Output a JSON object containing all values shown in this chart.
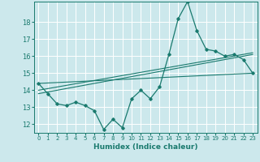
{
  "title": "",
  "xlabel": "Humidex (Indice chaleur)",
  "bg_color": "#cce8ec",
  "grid_color": "#ffffff",
  "line_color": "#1a7a6e",
  "xlim": [
    -0.5,
    23.5
  ],
  "ylim": [
    11.5,
    19.2
  ],
  "yticks": [
    12,
    13,
    14,
    15,
    16,
    17,
    18
  ],
  "xticks": [
    0,
    1,
    2,
    3,
    4,
    5,
    6,
    7,
    8,
    9,
    10,
    11,
    12,
    13,
    14,
    15,
    16,
    17,
    18,
    19,
    20,
    21,
    22,
    23
  ],
  "series1_x": [
    0,
    1,
    2,
    3,
    4,
    5,
    6,
    7,
    8,
    9,
    10,
    11,
    12,
    13,
    14,
    15,
    16,
    17,
    18,
    19,
    20,
    21,
    22,
    23
  ],
  "series1_y": [
    14.4,
    13.8,
    13.2,
    13.1,
    13.3,
    13.1,
    12.8,
    11.7,
    12.3,
    11.8,
    13.5,
    14.0,
    13.5,
    14.2,
    16.1,
    18.2,
    19.2,
    17.5,
    16.4,
    16.3,
    16.0,
    16.1,
    15.8,
    15.0
  ],
  "line2_x": [
    0,
    23
  ],
  "line2_y": [
    14.0,
    16.2
  ],
  "line3_x": [
    0,
    23
  ],
  "line3_y": [
    13.8,
    16.1
  ],
  "line4_x": [
    0,
    23
  ],
  "line4_y": [
    14.4,
    15.0
  ]
}
